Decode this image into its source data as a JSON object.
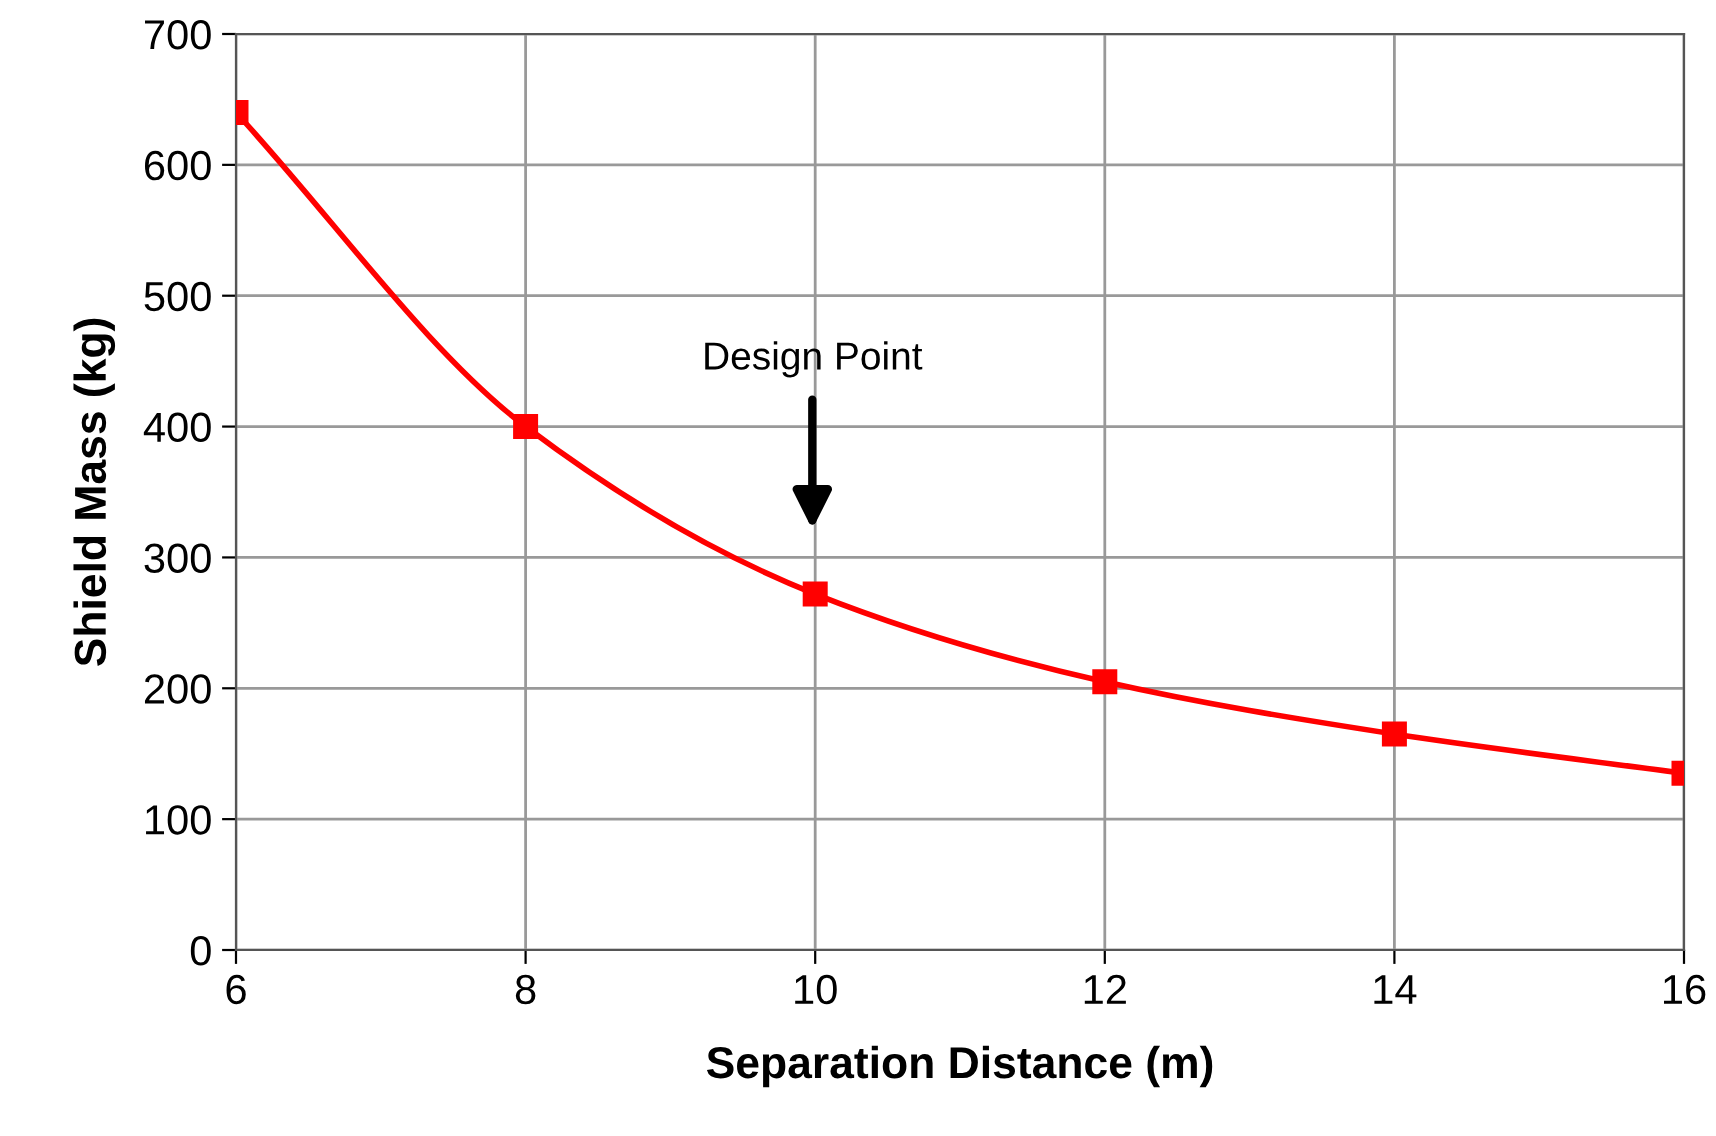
{
  "chart_data": {
    "type": "line",
    "xlabel": "Separation Distance (m)",
    "ylabel": "Shield Mass (kg)",
    "x": [
      6,
      8,
      10,
      12,
      14,
      16
    ],
    "series": [
      {
        "color": "#ff0000",
        "values": [
          640,
          400,
          272,
          205,
          165,
          135
        ]
      }
    ],
    "xlim": [
      6,
      16
    ],
    "xticks": [
      6,
      8,
      10,
      12,
      14,
      16
    ],
    "ylim": [
      0,
      700
    ],
    "yticks": [
      0,
      100,
      200,
      300,
      400,
      500,
      600,
      700
    ],
    "grid": true,
    "marker": "square",
    "line_style": "solid",
    "annotations": [
      "Design Point"
    ]
  }
}
